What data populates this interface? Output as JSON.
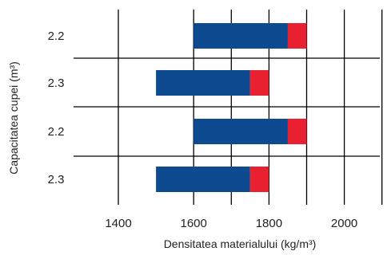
{
  "chart_data": {
    "type": "bar",
    "orientation": "horizontal",
    "xlabel": "Densitatea materialului (kg/m³)",
    "ylabel": "Capacitatea cupei (m³)",
    "xlim": [
      1300,
      2110
    ],
    "x_ticks": [
      "1400",
      "1600",
      "1800",
      "2000"
    ],
    "x_tick_values": [
      1400,
      1600,
      1800,
      2000
    ],
    "categories": [
      "2.2",
      "2.3",
      "2.2",
      "2.3"
    ],
    "bars": [
      {
        "label": "2.2",
        "blue_start": 1600,
        "blue_end": 1850,
        "red_end": 1900
      },
      {
        "label": "2.3",
        "blue_start": 1500,
        "blue_end": 1750,
        "red_end": 1800
      },
      {
        "label": "2.2",
        "blue_start": 1600,
        "blue_end": 1850,
        "red_end": 1900
      },
      {
        "label": "2.3",
        "blue_start": 1500,
        "blue_end": 1750,
        "red_end": 1800
      }
    ],
    "grid": true,
    "legend": "none",
    "colors": {
      "primary": "#0d4a8f",
      "secondary": "#e8202f",
      "grid": "#000000"
    }
  }
}
